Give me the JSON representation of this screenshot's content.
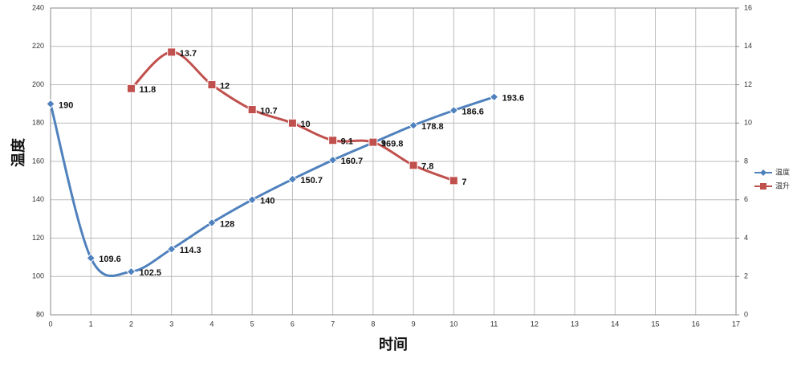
{
  "chart_data": {
    "type": "line",
    "x_label": "时间",
    "y_label": "温度",
    "xlim": [
      0,
      17
    ],
    "xticks": [
      0,
      1,
      2,
      3,
      4,
      5,
      6,
      7,
      8,
      9,
      10,
      11,
      12,
      13,
      14,
      15,
      16,
      17
    ],
    "ylim": [
      80,
      240
    ],
    "yticks": [
      80,
      100,
      120,
      140,
      160,
      180,
      200,
      220,
      240
    ],
    "y2lim": [
      0,
      16
    ],
    "y2ticks": [
      0,
      2,
      4,
      6,
      8,
      10,
      12,
      14,
      16
    ],
    "grid": true,
    "smooth": true,
    "legend": "right",
    "series": [
      {
        "name": "温度",
        "color": "#4f81bd",
        "marker": "diamond",
        "x": [
          0,
          1,
          2,
          3,
          4,
          5,
          6,
          7,
          8,
          9,
          10,
          11
        ],
        "values": [
          190,
          109.6,
          102.5,
          114.3,
          128,
          140,
          150.7,
          160.7,
          169.8,
          178.8,
          186.6,
          193.6
        ]
      },
      {
        "name": "温升",
        "color": "#c0504d",
        "marker": "square",
        "axis": "y2",
        "x": [
          2,
          3,
          4,
          5,
          6,
          7,
          8,
          9,
          10
        ],
        "values": [
          11.8,
          13.7,
          12,
          10.7,
          10,
          9.1,
          9,
          7.8,
          7
        ]
      }
    ]
  }
}
